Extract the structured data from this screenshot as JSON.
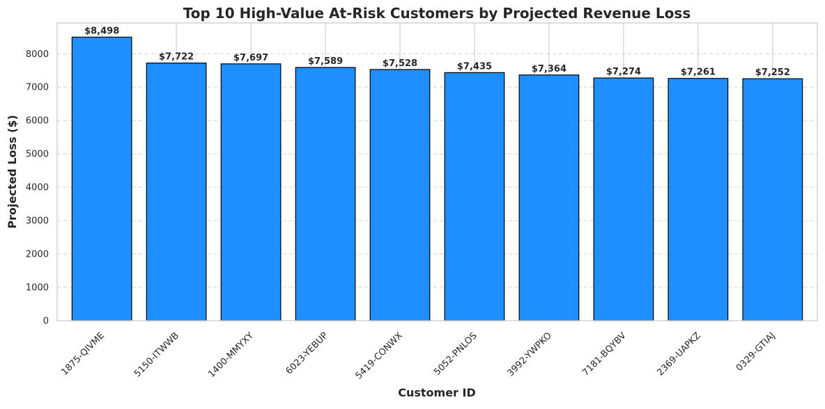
{
  "chart_data": {
    "type": "bar",
    "title": "Top 10 High-Value At-Risk Customers by Projected Revenue Loss",
    "xlabel": "Customer ID",
    "ylabel": "Projected Loss ($)",
    "categories": [
      "1875-QIVME",
      "5150-ITWWB",
      "1400-MMYXY",
      "6023-YEBUP",
      "5419-CONWX",
      "5052-PNLOS",
      "3992-YWPKO",
      "7181-BQYBV",
      "2369-UAPKZ",
      "0329-GTIAJ"
    ],
    "values": [
      8498,
      7722,
      7697,
      7589,
      7528,
      7435,
      7364,
      7274,
      7261,
      7252
    ],
    "value_labels": [
      "$8,498",
      "$7,722",
      "$7,697",
      "$7,589",
      "$7,528",
      "$7,435",
      "$7,364",
      "$7,274",
      "$7,261",
      "$7,252"
    ],
    "ylim": [
      0,
      8923
    ],
    "yticks": [
      0,
      1000,
      2000,
      3000,
      4000,
      5000,
      6000,
      7000,
      8000
    ],
    "ytick_labels": [
      "0",
      "1000",
      "2000",
      "3000",
      "4000",
      "5000",
      "6000",
      "7000",
      "8000"
    ],
    "bar_color": "#1f8fff",
    "bar_edge_color": "#000000",
    "grid": true,
    "xtick_rotation": 45
  }
}
